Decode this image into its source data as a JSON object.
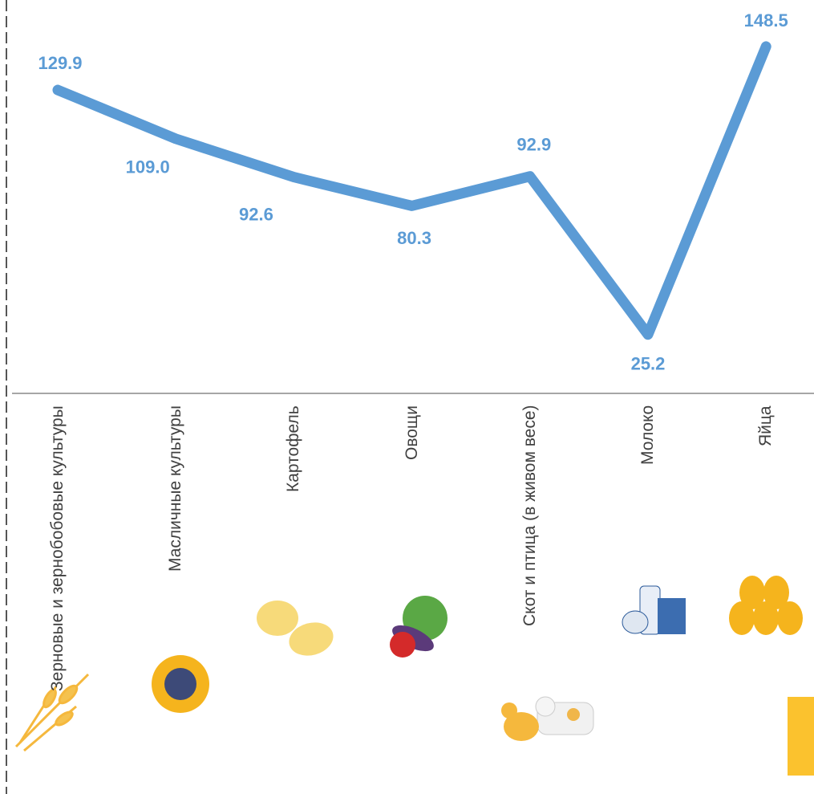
{
  "chart_data": {
    "type": "line",
    "categories": [
      "Зерновые и зернобобовые культуры",
      "Масличные культуры",
      "Картофель",
      "Овощи",
      "Скот и птица (в живом весе)",
      "Молоко",
      "Яйца"
    ],
    "values": [
      129.9,
      109.0,
      92.6,
      80.3,
      92.9,
      25.2,
      148.5
    ],
    "value_labels": [
      "129.9",
      "109.0",
      "92.6",
      "80.3",
      "92.9",
      "25.2",
      "148.5"
    ],
    "color": "#5b9bd5",
    "ylim": [
      0,
      160
    ]
  }
}
